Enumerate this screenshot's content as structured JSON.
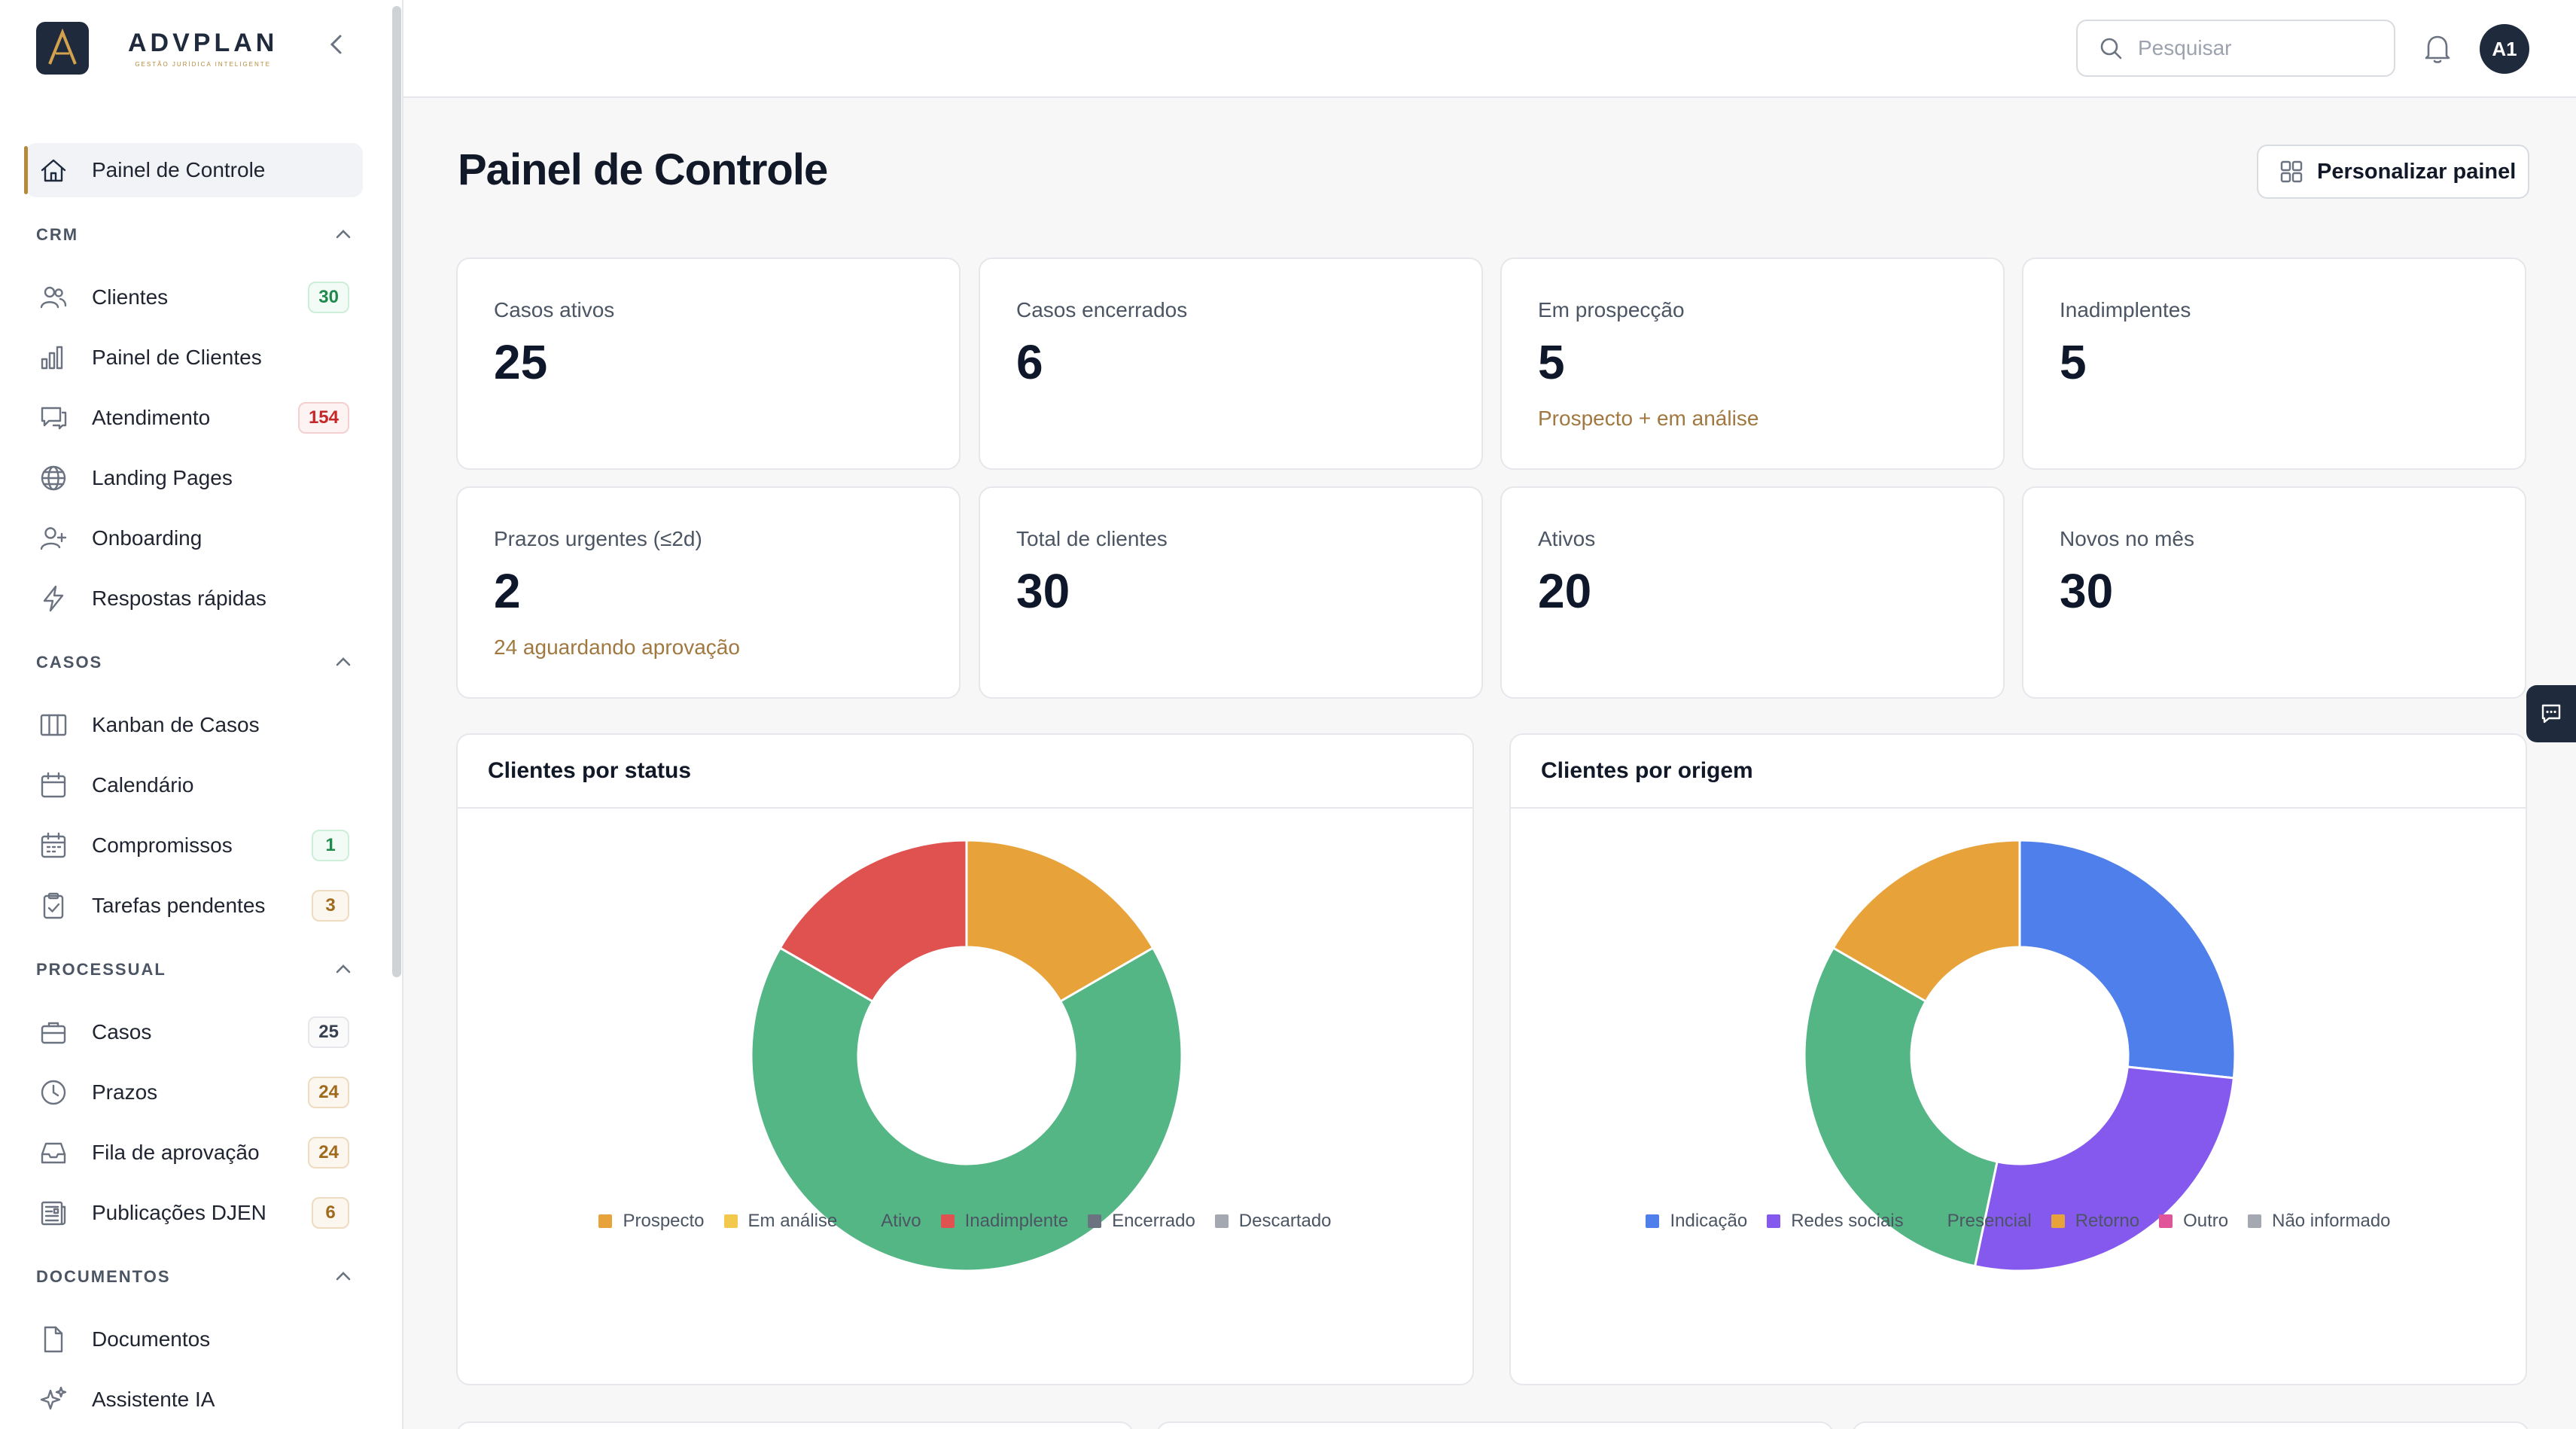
{
  "brand": {
    "name": "ADVPLAN",
    "tagline": "GESTÃO JURÍDICA INTELIGENTE"
  },
  "sidebar": {
    "active": {
      "label": "Painel de Controle",
      "icon": "home-icon"
    },
    "sections": [
      {
        "title": "CRM",
        "items": [
          {
            "label": "Clientes",
            "icon": "users-icon",
            "badge": "30",
            "badge_color": "green"
          },
          {
            "label": "Painel de Clientes",
            "icon": "bar-chart-icon"
          },
          {
            "label": "Atendimento",
            "icon": "chat-icon",
            "badge": "154",
            "badge_color": "red"
          },
          {
            "label": "Landing Pages",
            "icon": "globe-icon"
          },
          {
            "label": "Onboarding",
            "icon": "user-plus-icon"
          },
          {
            "label": "Respostas rápidas",
            "icon": "zap-icon"
          }
        ]
      },
      {
        "title": "CASOS",
        "items": [
          {
            "label": "Kanban de Casos",
            "icon": "kanban-icon"
          },
          {
            "label": "Calendário",
            "icon": "calendar-icon"
          },
          {
            "label": "Compromissos",
            "icon": "calendar-grid-icon",
            "badge": "1",
            "badge_color": "green"
          },
          {
            "label": "Tarefas pendentes",
            "icon": "clipboard-check-icon",
            "badge": "3",
            "badge_color": "amber"
          }
        ]
      },
      {
        "title": "PROCESSUAL",
        "items": [
          {
            "label": "Casos",
            "icon": "briefcase-icon",
            "badge": "25",
            "badge_color": "gray"
          },
          {
            "label": "Prazos",
            "icon": "clock-icon",
            "badge": "24",
            "badge_color": "amber"
          },
          {
            "label": "Fila de aprovação",
            "icon": "inbox-icon",
            "badge": "24",
            "badge_color": "amber"
          },
          {
            "label": "Publicações DJEN",
            "icon": "newspaper-icon",
            "badge": "6",
            "badge_color": "amber"
          }
        ]
      },
      {
        "title": "DOCUMENTOS",
        "items": [
          {
            "label": "Documentos",
            "icon": "file-icon"
          },
          {
            "label": "Assistente IA",
            "icon": "sparkles-icon"
          }
        ]
      }
    ]
  },
  "topbar": {
    "search_placeholder": "Pesquisar",
    "avatar_initials": "A1"
  },
  "main": {
    "title": "Painel de Controle",
    "customize_label": "Personalizar painel",
    "stats": [
      {
        "label": "Casos ativos",
        "value": "25",
        "note": ""
      },
      {
        "label": "Casos encerrados",
        "value": "6",
        "note": ""
      },
      {
        "label": "Em prospecção",
        "value": "5",
        "note": "Prospecto + em análise"
      },
      {
        "label": "Inadimplentes",
        "value": "5",
        "note": ""
      },
      {
        "label": "Prazos urgentes (≤2d)",
        "value": "2",
        "note": "24 aguardando aprovação"
      },
      {
        "label": "Total de clientes",
        "value": "30",
        "note": ""
      },
      {
        "label": "Ativos",
        "value": "20",
        "note": ""
      },
      {
        "label": "Novos no mês",
        "value": "30",
        "note": ""
      }
    ]
  },
  "chart_data": [
    {
      "type": "pie",
      "title": "Clientes por status",
      "categories": [
        "Prospecto",
        "Em análise",
        "Ativo",
        "Inadimplente",
        "Encerrado",
        "Descartado"
      ],
      "values": [
        5,
        0,
        20,
        5,
        0,
        0
      ],
      "colors": [
        "#e8a23a",
        "#f2c94c",
        "#55b685",
        "#e05250",
        "#6b7280",
        "#a3a8b1"
      ],
      "legend_position": "bottom"
    },
    {
      "type": "pie",
      "title": "Clientes por origem",
      "categories": [
        "Indicação",
        "Redes sociais",
        "Presencial",
        "Retorno",
        "Outro",
        "Não informado"
      ],
      "values": [
        8,
        8,
        9,
        5,
        0,
        0
      ],
      "colors": [
        "#4f7fea",
        "#8559ee",
        "#55b685",
        "#e8a23a",
        "#e0559a",
        "#a3a8b1"
      ],
      "legend_position": "bottom"
    }
  ]
}
